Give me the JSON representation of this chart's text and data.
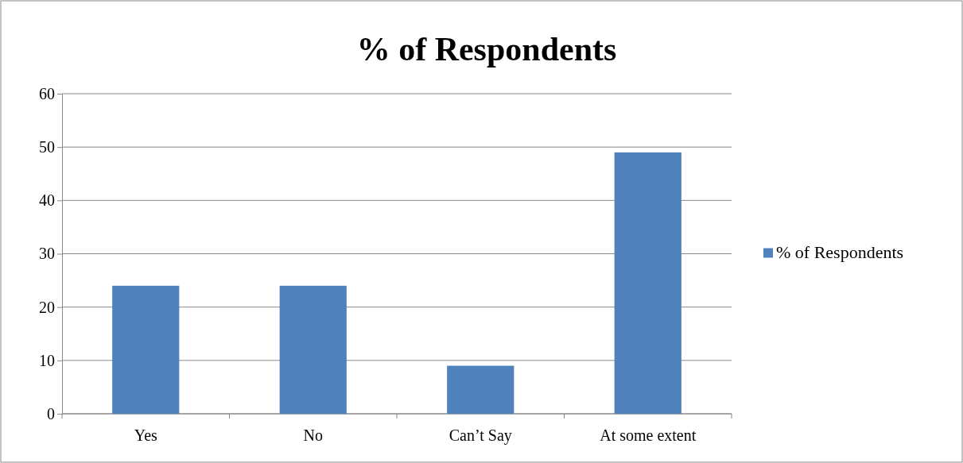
{
  "chart_data": {
    "type": "bar",
    "title": "% of Respondents",
    "categories": [
      "Yes",
      "No",
      "Can’t Say",
      "At some extent"
    ],
    "series": [
      {
        "name": "% of Respondents",
        "color": "#4f81bd",
        "values": [
          24,
          24,
          9,
          49
        ]
      }
    ],
    "ylim": [
      0,
      60
    ],
    "yticks": [
      0,
      10,
      20,
      30,
      40,
      50,
      60
    ],
    "grid": "y",
    "legend": "right"
  }
}
